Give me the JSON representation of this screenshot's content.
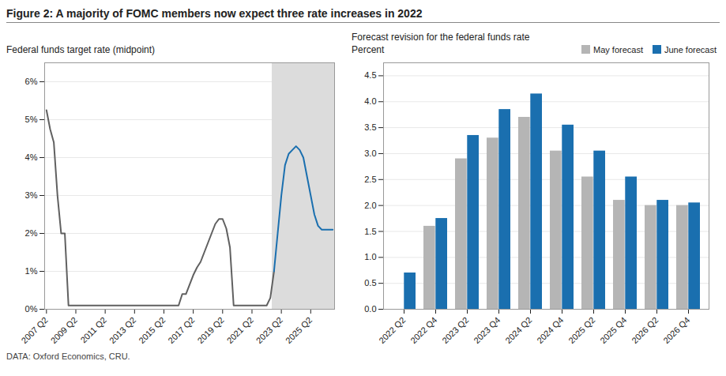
{
  "title": "Figure 2: A majority of FOMC members now expect three rate increases in 2022",
  "annotations": [
    "DATA: Oxford Economics, CRU."
  ],
  "chart_data": [
    {
      "type": "line",
      "title": "Federal funds target rate (midpoint)",
      "categories": [
        "2007 Q2",
        null,
        null,
        null,
        null,
        null,
        null,
        null,
        "2009 Q2",
        null,
        null,
        null,
        null,
        null,
        null,
        null,
        "2011 Q2",
        null,
        null,
        null,
        null,
        null,
        null,
        null,
        "2013 Q2",
        null,
        null,
        null,
        null,
        null,
        null,
        null,
        "2015 Q2",
        null,
        null,
        null,
        null,
        null,
        null,
        null,
        "2017 Q2",
        null,
        null,
        null,
        null,
        null,
        null,
        null,
        "2019 Q2",
        null,
        null,
        null,
        null,
        null,
        null,
        null,
        "2021 Q2",
        null,
        null,
        null,
        null,
        null,
        null,
        null,
        "2023 Q2",
        null,
        null,
        null,
        null,
        null,
        null,
        null,
        "2025 Q2",
        null,
        null,
        null,
        null,
        null,
        null
      ],
      "series": [
        {
          "color": "#606060",
          "values": [
            0.0525,
            0.0475,
            0.044,
            0.03,
            0.02,
            0.02,
            0.001,
            0.001,
            0.001,
            0.001,
            0.001,
            0.001,
            0.001,
            0.001,
            0.001,
            0.001,
            0.001,
            0.001,
            0.001,
            0.001,
            0.001,
            0.001,
            0.001,
            0.001,
            0.001,
            0.001,
            0.001,
            0.001,
            0.001,
            0.001,
            0.001,
            0.001,
            0.001,
            0.001,
            0.001,
            0.001,
            0.001,
            0.004,
            0.004,
            0.0065,
            0.009,
            0.011,
            0.0125,
            0.015,
            0.0175,
            0.02,
            0.0225,
            0.0238,
            0.0238,
            0.0213,
            0.0163,
            0.001,
            0.001,
            0.001,
            0.001,
            0.001,
            0.001,
            0.001,
            0.001,
            0.001,
            0.001,
            0.003,
            0.01,
            null,
            null,
            null,
            null,
            null,
            null,
            null,
            null,
            null,
            null,
            null,
            null,
            null,
            null,
            null,
            null
          ]
        },
        {
          "color": "#1a6faf",
          "values": [
            null,
            null,
            null,
            null,
            null,
            null,
            null,
            null,
            null,
            null,
            null,
            null,
            null,
            null,
            null,
            null,
            null,
            null,
            null,
            null,
            null,
            null,
            null,
            null,
            null,
            null,
            null,
            null,
            null,
            null,
            null,
            null,
            null,
            null,
            null,
            null,
            null,
            null,
            null,
            null,
            null,
            null,
            null,
            null,
            null,
            null,
            null,
            null,
            null,
            null,
            null,
            null,
            null,
            null,
            null,
            null,
            null,
            null,
            null,
            null,
            null,
            null,
            0.01,
            0.02,
            0.03,
            0.038,
            0.041,
            0.042,
            0.043,
            0.042,
            0.04,
            0.035,
            0.03,
            0.025,
            0.022,
            0.021,
            0.021,
            0.021,
            0.021
          ]
        }
      ],
      "ylim": [
        0,
        0.065
      ],
      "yticks": [
        {
          "value": 0,
          "label": "0%"
        },
        {
          "value": 0.01,
          "label": "1%"
        },
        {
          "value": 0.02,
          "label": "2%"
        },
        {
          "value": 0.03,
          "label": "3%"
        },
        {
          "value": 0.04,
          "label": "4%"
        },
        {
          "value": 0.05,
          "label": "5%"
        },
        {
          "value": 0.06,
          "label": "6%"
        }
      ],
      "grid": true
    },
    {
      "type": "bar",
      "title": "Forecast revision for the federal funds rate",
      "subtitle": "Percent",
      "categories": [
        "2022 Q2",
        "2022 Q4",
        "2023 Q2",
        "2023 Q4",
        "2024 Q2",
        "2024 Q4",
        "2025 Q2",
        "2025 Q4",
        "2026 Q2",
        "2026 Q4"
      ],
      "series": [
        {
          "name": "May forecast",
          "color": "#b5b5b5",
          "values": [
            0.0,
            1.6,
            2.9,
            3.3,
            3.7,
            3.05,
            2.55,
            2.1,
            2.0,
            2.0
          ]
        },
        {
          "name": "June forecast",
          "color": "#1a6faf",
          "values": [
            0.7,
            1.75,
            3.35,
            3.85,
            4.15,
            3.55,
            3.05,
            2.55,
            2.1,
            2.05
          ]
        }
      ],
      "ylim": [
        0,
        4.75
      ],
      "yticks": [
        {
          "value": 0,
          "label": "0.0"
        },
        0.5,
        {
          "value": 1,
          "label": "1.0"
        },
        1.5,
        {
          "value": 2,
          "label": "2.0"
        },
        2.5,
        {
          "value": 3,
          "label": "3.0"
        },
        3.5,
        {
          "value": 4,
          "label": "4.0"
        },
        4.5
      ],
      "grid": true,
      "legend": "upper right"
    }
  ]
}
